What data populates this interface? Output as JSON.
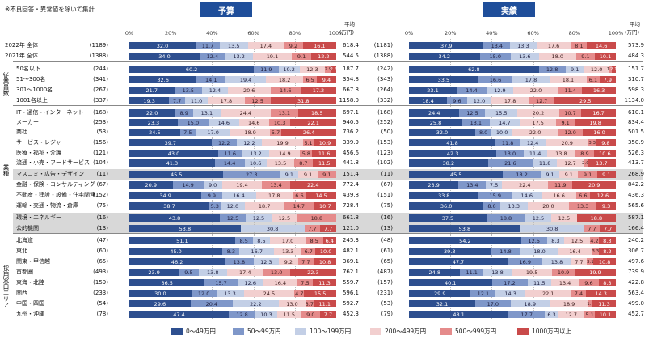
{
  "note": "※不良回答・異常値を除いて集計",
  "unit_label": "平均",
  "unit_sub": "(万円)",
  "colors": [
    "#2e4f8f",
    "#7f97c9",
    "#c3cfe6",
    "#f2cfcf",
    "#e58b8b",
    "#c94a4a"
  ],
  "chart_data": [
    {
      "type": "bar",
      "title": "予算",
      "xlim": [
        0,
        100
      ],
      "xticks": [
        "0%",
        "20%",
        "40%",
        "60%",
        "80%",
        "100%"
      ],
      "legend": [
        "0〜49万円",
        "50〜99万円",
        "100〜199万円",
        "200〜499万円",
        "500〜999万円",
        "1000万円以上"
      ],
      "rows": [
        {
          "label": "2022年 全体",
          "n": "(1189)",
          "values": [
            32.0,
            11.7,
            13.5,
            17.4,
            9.2,
            16.1
          ],
          "avg": "618.4"
        },
        {
          "label": "2021年 全体",
          "n": "(1388)",
          "values": [
            34.0,
            12.4,
            13.2,
            19.1,
            9.1,
            12.2
          ],
          "avg": "544.5"
        },
        {
          "label": "50名以下",
          "n": "(244)",
          "values": [
            60.2,
            11.9,
            10.2,
            12.3,
            2.9,
            2.5
          ],
          "avg": "187.7"
        },
        {
          "label": "51〜300名",
          "n": "(341)",
          "values": [
            32.6,
            14.1,
            19.4,
            18.2,
            6.5,
            9.4
          ],
          "avg": "354.8"
        },
        {
          "label": "301〜1000名",
          "n": "(267)",
          "values": [
            21.7,
            13.5,
            12.4,
            20.6,
            14.6,
            17.2
          ],
          "avg": "667.8"
        },
        {
          "label": "1001名以上",
          "n": "(337)",
          "values": [
            19.3,
            7.7,
            11.0,
            17.8,
            12.5,
            31.8
          ],
          "avg": "1158.0"
        },
        {
          "label": "IT・通信・インターネット",
          "n": "(168)",
          "values": [
            22.0,
            8.9,
            13.1,
            24.4,
            13.1,
            18.5
          ],
          "avg": "697.1"
        },
        {
          "label": "メーカー",
          "n": "(253)",
          "values": [
            23.3,
            15.0,
            14.6,
            14.6,
            10.3,
            22.1
          ],
          "avg": "940.5"
        },
        {
          "label": "商社",
          "n": "(53)",
          "values": [
            24.5,
            7.5,
            17.0,
            18.9,
            5.7,
            26.4
          ],
          "avg": "736.2"
        },
        {
          "label": "サービス・レジャー",
          "n": "(156)",
          "values": [
            39.7,
            12.2,
            12.2,
            19.9,
            5.1,
            10.9
          ],
          "avg": "339.9"
        },
        {
          "label": "医療・福祉・介護",
          "n": "(121)",
          "values": [
            43.0,
            11.6,
            13.2,
            14.9,
            5.8,
            11.6
          ],
          "avg": "456.6"
        },
        {
          "label": "流通・小売・フードサービス",
          "n": "(104)",
          "values": [
            41.3,
            14.4,
            10.6,
            13.5,
            8.7,
            11.5
          ],
          "avg": "441.8"
        },
        {
          "label": "マスコミ・広告・デザイン",
          "n": "(11)",
          "values": [
            45.5,
            27.3,
            9.1,
            9.1,
            9.1,
            0
          ],
          "avg": "151.4",
          "hl": true
        },
        {
          "label": "金融・保険・コンサルティング",
          "n": "(67)",
          "values": [
            20.9,
            14.9,
            9.0,
            19.4,
            13.4,
            22.4
          ],
          "avg": "772.4"
        },
        {
          "label": "不動産・建設・設備・住宅関連",
          "n": "(152)",
          "values": [
            34.9,
            9.9,
            16.4,
            17.8,
            6.6,
            14.5
          ],
          "avg": "439.8"
        },
        {
          "label": "運輸・交通・物流・倉庫",
          "n": "(75)",
          "values": [
            38.7,
            5.3,
            12.0,
            18.7,
            14.7,
            10.7
          ],
          "avg": "728.4"
        },
        {
          "label": "環境・エネルギー",
          "n": "(16)",
          "values": [
            43.8,
            12.5,
            12.5,
            12.5,
            18.8,
            0
          ],
          "avg": "661.8",
          "hl": true
        },
        {
          "label": "公的機関",
          "n": "(13)",
          "values": [
            53.8,
            0,
            30.8,
            0,
            7.7,
            7.7
          ],
          "avg": "121.0",
          "hl": true
        },
        {
          "label": "北海道",
          "n": "(47)",
          "values": [
            51.1,
            8.5,
            8.5,
            17.0,
            8.5,
            6.4
          ],
          "avg": "245.3"
        },
        {
          "label": "東北",
          "n": "(60)",
          "values": [
            45.0,
            8.3,
            16.7,
            13.3,
            6.7,
            10.0
          ],
          "avg": "482.1"
        },
        {
          "label": "関東・甲信越",
          "n": "(65)",
          "values": [
            46.2,
            13.8,
            12.3,
            9.2,
            7.7,
            10.8
          ],
          "avg": "369.1"
        },
        {
          "label": "首都圏",
          "n": "(493)",
          "values": [
            23.9,
            9.5,
            13.8,
            17.4,
            13.0,
            22.3
          ],
          "avg": "762.1"
        },
        {
          "label": "東海・北陸",
          "n": "(159)",
          "values": [
            36.5,
            15.7,
            12.6,
            16.4,
            7.5,
            11.3
          ],
          "avg": "559.7"
        },
        {
          "label": "関西",
          "n": "(233)",
          "values": [
            30.0,
            12.0,
            13.3,
            24.5,
            4.7,
            15.5
          ],
          "avg": "596.1"
        },
        {
          "label": "中国・四国",
          "n": "(54)",
          "values": [
            29.6,
            20.4,
            22.2,
            13.0,
            3.7,
            11.1
          ],
          "avg": "592.7"
        },
        {
          "label": "九州・沖縄",
          "n": "(78)",
          "values": [
            47.4,
            12.8,
            10.3,
            11.5,
            9.0,
            7.7
          ],
          "avg": "452.3"
        }
      ]
    },
    {
      "type": "bar",
      "title": "実績",
      "xlim": [
        0,
        100
      ],
      "xticks": [
        "0%",
        "20%",
        "40%",
        "60%",
        "80%",
        "100%"
      ],
      "rows": [
        {
          "n": "(1181)",
          "values": [
            37.9,
            13.4,
            13.3,
            17.6,
            8.1,
            14.6
          ],
          "avg": "573.9"
        },
        {
          "n": "(1388)",
          "values": [
            34.2,
            15.0,
            13.6,
            18.0,
            9.1,
            10.1
          ],
          "avg": "484.3"
        },
        {
          "n": "(242)",
          "values": [
            62.8,
            12.8,
            9.1,
            12.0,
            1.2,
            2.1
          ],
          "avg": "151.7"
        },
        {
          "n": "(343)",
          "values": [
            33.5,
            16.6,
            17.8,
            18.1,
            6.1,
            7.9
          ],
          "avg": "310.7"
        },
        {
          "n": "(264)",
          "values": [
            23.1,
            14.4,
            12.9,
            22.0,
            11.4,
            16.3
          ],
          "avg": "598.3"
        },
        {
          "n": "(332)",
          "values": [
            18.4,
            9.6,
            12.0,
            17.8,
            12.7,
            29.5
          ],
          "avg": "1134.0"
        },
        {
          "n": "(168)",
          "values": [
            24.4,
            12.5,
            15.5,
            20.2,
            10.7,
            16.7
          ],
          "avg": "610.1"
        },
        {
          "n": "(252)",
          "values": [
            25.8,
            13.1,
            14.7,
            17.5,
            9.1,
            19.8
          ],
          "avg": "834.4"
        },
        {
          "n": "(50)",
          "values": [
            32.0,
            8.0,
            10.0,
            22.0,
            12.0,
            16.0
          ],
          "avg": "501.5"
        },
        {
          "n": "(153)",
          "values": [
            41.8,
            11.8,
            12.4,
            20.9,
            3.3,
            9.8
          ],
          "avg": "350.9"
        },
        {
          "n": "(123)",
          "values": [
            42.3,
            13.0,
            11.4,
            13.8,
            8.9,
            10.6
          ],
          "avg": "526.3"
        },
        {
          "n": "(102)",
          "values": [
            38.2,
            21.6,
            11.8,
            12.7,
            2.0,
            13.7
          ],
          "avg": "413.7"
        },
        {
          "n": "(11)",
          "values": [
            45.5,
            18.2,
            9.1,
            9.1,
            9.1,
            9.1
          ],
          "avg": "268.9",
          "hl": true
        },
        {
          "n": "(67)",
          "values": [
            23.9,
            13.4,
            7.5,
            22.4,
            11.9,
            20.9
          ],
          "avg": "842.2"
        },
        {
          "n": "(151)",
          "values": [
            33.8,
            15.9,
            14.6,
            16.6,
            6.6,
            12.6
          ],
          "avg": "436.3"
        },
        {
          "n": "(75)",
          "values": [
            36.0,
            8.0,
            13.3,
            20.0,
            13.3,
            9.3
          ],
          "avg": "565.6"
        },
        {
          "n": "(16)",
          "values": [
            37.5,
            18.8,
            12.5,
            12.5,
            0,
            18.8
          ],
          "avg": "587.1",
          "hl": true
        },
        {
          "n": "(13)",
          "values": [
            53.8,
            0,
            30.8,
            0,
            7.7,
            7.7
          ],
          "avg": "166.4",
          "hl": true
        },
        {
          "n": "(48)",
          "values": [
            54.2,
            12.5,
            8.3,
            12.5,
            4.2,
            8.3
          ],
          "avg": "240.2"
        },
        {
          "n": "(61)",
          "values": [
            39.3,
            14.8,
            18.0,
            16.4,
            3.3,
            8.2
          ],
          "avg": "306.7"
        },
        {
          "n": "(65)",
          "values": [
            47.7,
            16.9,
            13.8,
            7.7,
            3.1,
            10.8
          ],
          "avg": "497.6"
        },
        {
          "n": "(487)",
          "values": [
            24.8,
            11.1,
            13.8,
            19.5,
            10.9,
            19.9
          ],
          "avg": "739.9"
        },
        {
          "n": "(157)",
          "values": [
            40.1,
            17.2,
            11.5,
            13.4,
            9.6,
            8.3
          ],
          "avg": "422.8"
        },
        {
          "n": "(231)",
          "values": [
            29.9,
            12.1,
            14.3,
            22.1,
            7.4,
            14.3
          ],
          "avg": "563.4"
        },
        {
          "n": "(53)",
          "values": [
            32.1,
            17.0,
            18.9,
            18.9,
            1.9,
            11.3
          ],
          "avg": "499.0"
        },
        {
          "n": "(79)",
          "values": [
            48.1,
            17.7,
            6.3,
            12.7,
            5.1,
            10.1
          ],
          "avg": "452.7"
        }
      ]
    }
  ],
  "groups": [
    "従業員数",
    "業種",
    "採用窓口エリア"
  ]
}
